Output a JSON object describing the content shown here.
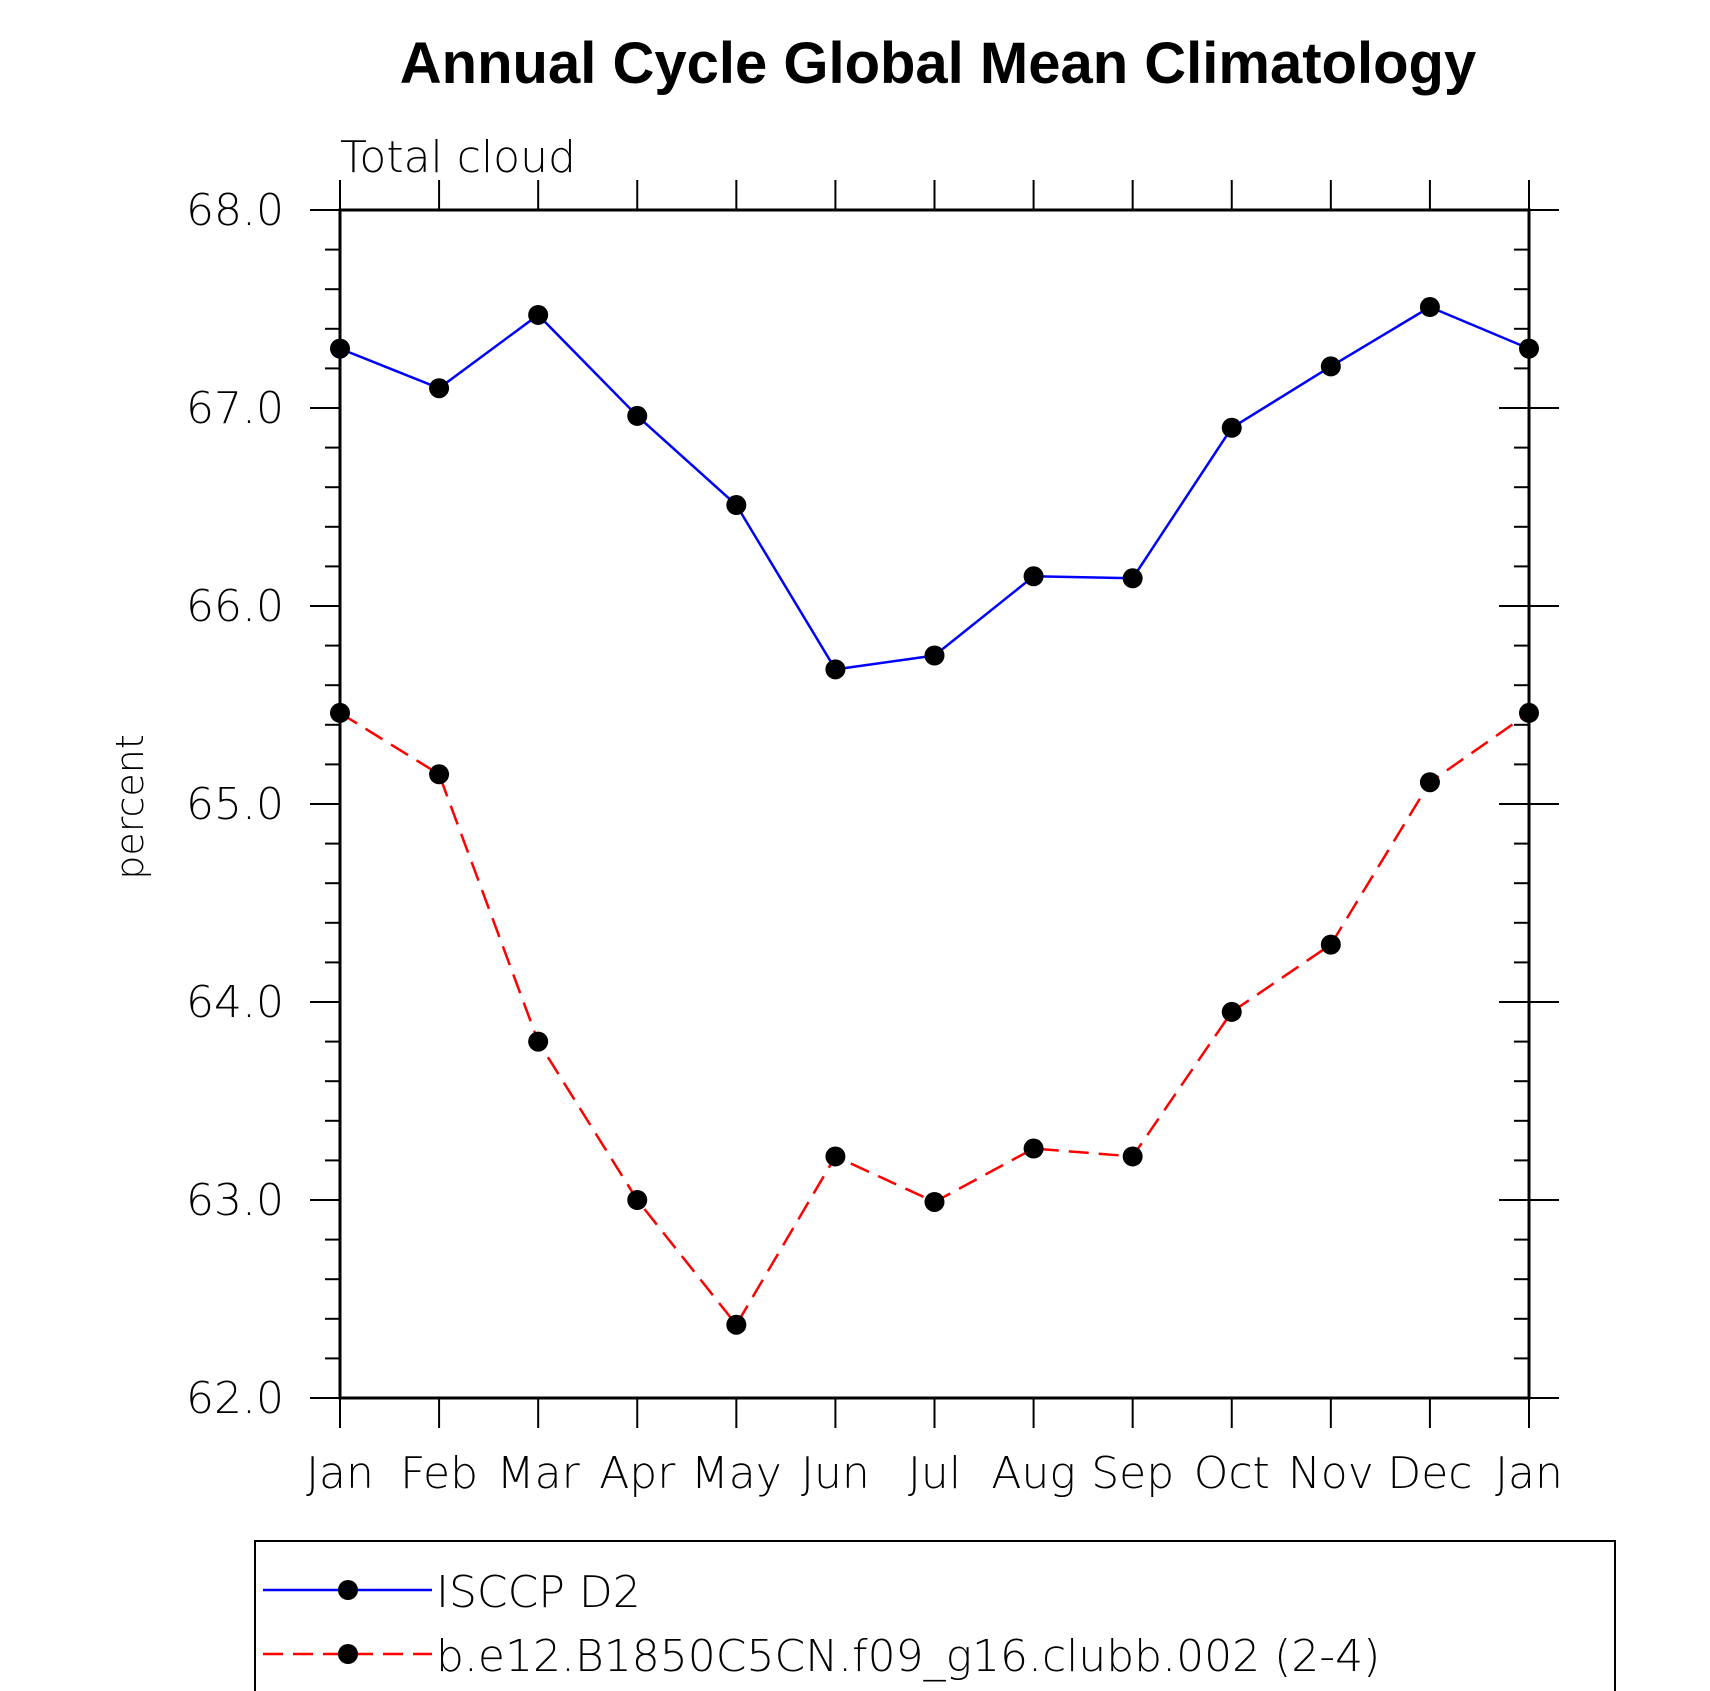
{
  "chart_data": {
    "type": "line",
    "title": "Annual Cycle Global Mean Climatology",
    "subtitle": "Total cloud",
    "xlabel": "",
    "ylabel": "percent",
    "categories": [
      "Jan",
      "Feb",
      "Mar",
      "Apr",
      "May",
      "Jun",
      "Jul",
      "Aug",
      "Sep",
      "Oct",
      "Nov",
      "Dec",
      "Jan"
    ],
    "ylim": [
      62.0,
      68.0
    ],
    "yticks": [
      "62.0",
      "63.0",
      "64.0",
      "65.0",
      "66.0",
      "67.0",
      "68.0"
    ],
    "grid": false,
    "legend_position": "bottom",
    "series": [
      {
        "name": "ISCCP D2",
        "color": "#0000ff",
        "dash": "solid",
        "marker": "filled-circle",
        "values": [
          67.3,
          67.1,
          67.47,
          66.96,
          66.51,
          65.68,
          65.75,
          66.15,
          66.14,
          66.9,
          67.21,
          67.51,
          67.3
        ]
      },
      {
        "name": "b.e12.B1850C5CN.f09_g16.clubb.002 (2-4)",
        "color": "#ff0000",
        "dash": "dashed",
        "marker": "filled-circle",
        "values": [
          65.46,
          65.15,
          63.8,
          63.0,
          62.37,
          63.22,
          62.99,
          63.26,
          63.22,
          63.95,
          64.29,
          65.11,
          65.46
        ]
      }
    ]
  }
}
